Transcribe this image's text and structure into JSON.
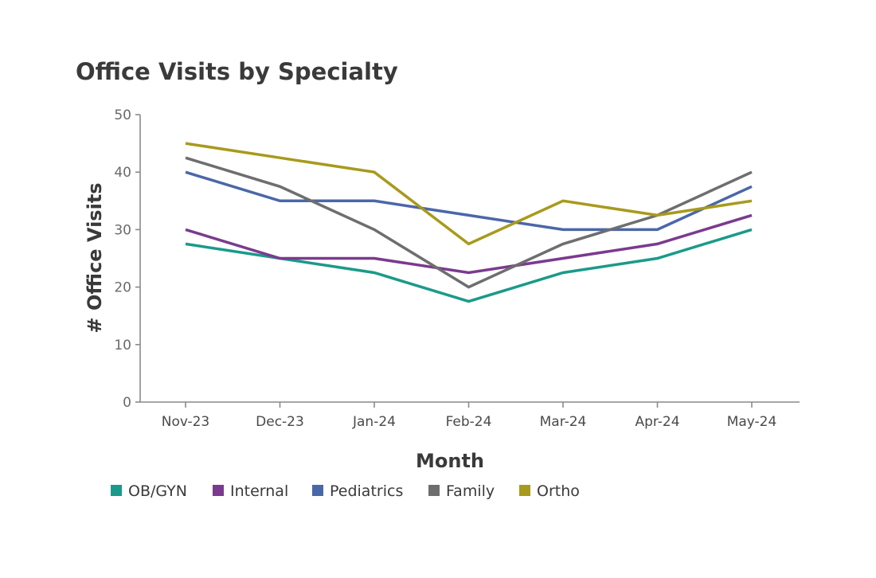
{
  "chart_data": {
    "type": "line",
    "title": "Office Visits by Specialty",
    "xlabel": "Month",
    "ylabel": "# Office Visits",
    "categories": [
      "Nov-23",
      "Dec-23",
      "Jan-24",
      "Feb-24",
      "Mar-24",
      "Apr-24",
      "May-24"
    ],
    "ylim": [
      0,
      50
    ],
    "yticks": [
      0,
      10,
      20,
      30,
      40,
      50
    ],
    "grid": false,
    "legend_position": "bottom-left",
    "series": [
      {
        "name": "OB/GYN",
        "color": "#1a9a8a",
        "values": [
          27.5,
          25,
          22.5,
          17.5,
          22.5,
          25,
          30
        ]
      },
      {
        "name": "Internal",
        "color": "#7b3a8f",
        "values": [
          30,
          25,
          25,
          22.5,
          25,
          27.5,
          32.5
        ]
      },
      {
        "name": "Pediatrics",
        "color": "#4a67a8",
        "values": [
          40,
          35,
          35,
          32.5,
          30,
          30,
          37.5
        ]
      },
      {
        "name": "Family",
        "color": "#6e6e6e",
        "values": [
          42.5,
          37.5,
          30,
          20,
          27.5,
          32.5,
          40
        ]
      },
      {
        "name": "Ortho",
        "color": "#a89a1c",
        "values": [
          45,
          42.5,
          40,
          27.5,
          35,
          32.5,
          35
        ]
      }
    ]
  }
}
